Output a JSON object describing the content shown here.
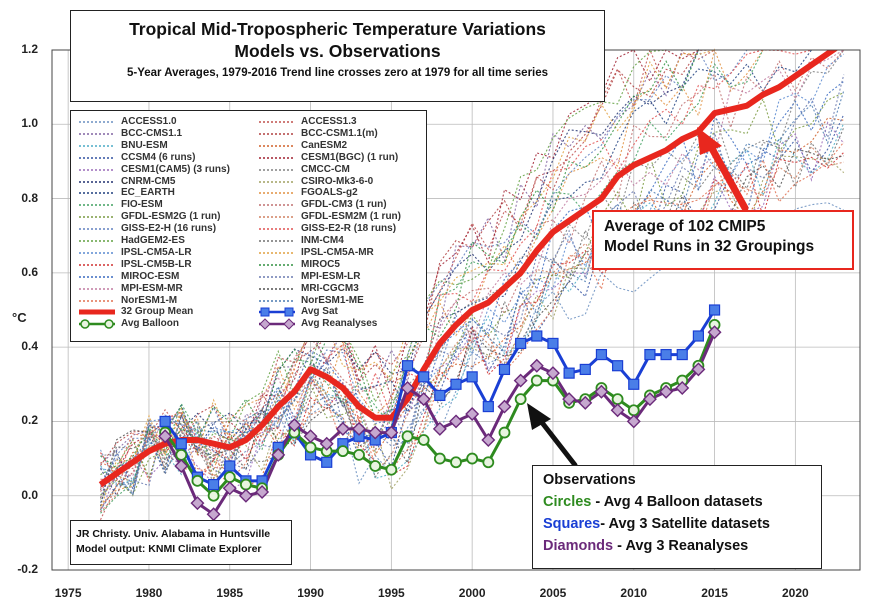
{
  "title": "Tropical Mid-Tropospheric Temperature Variations",
  "subtitle": "Models vs. Observations",
  "subtitle2": "5-Year Averages, 1979-2016 Trend line crosses zero at 1979 for all time series",
  "y_unit": "°C",
  "credit": [
    "JR Christy. Univ. Alabama in Huntsville",
    "Model output: KNMI Climate Explorer"
  ],
  "annotation": [
    "Average of 102 CMIP5",
    "Model Runs in 32 Groupings"
  ],
  "observations": {
    "heading": "Observations",
    "lines": [
      {
        "bold": "Circles",
        "rest": " - Avg 4 Balloon datasets",
        "color": "#2e8b1f"
      },
      {
        "bold": "Squares",
        "rest": "- Avg 3 Satellite datasets",
        "color": "#1a3fd4"
      },
      {
        "bold": "Diamonds",
        "rest": " - Avg 3 Reanalyses",
        "color": "#6b2a7a"
      }
    ]
  },
  "legend": [
    {
      "label": "ACCESS1.0",
      "color": "#6a8fc0"
    },
    {
      "label": "ACCESS1.3",
      "color": "#c0504d"
    },
    {
      "label": "BCC-CMS1.1",
      "color": "#8064a2"
    },
    {
      "label": "BCC-CSM1.1(m)",
      "color": "#b04040"
    },
    {
      "label": "BNU-ESM",
      "color": "#4bacc6"
    },
    {
      "label": "CanESM2",
      "color": "#d0602a"
    },
    {
      "label": "CCSM4 (6 runs)",
      "color": "#3050a0"
    },
    {
      "label": "CESM1(BGC) (1 run)",
      "color": "#a02030"
    },
    {
      "label": "CESM1(CAM5) (3 runs)",
      "color": "#9a6ab8"
    },
    {
      "label": "CMCC-CM",
      "color": "#808080"
    },
    {
      "label": "CNRM-CM5",
      "color": "#203070"
    },
    {
      "label": "CSIRO-Mk3-6-0",
      "color": "#a0a060"
    },
    {
      "label": "EC_EARTH",
      "color": "#1f3f7f"
    },
    {
      "label": "FGOALS-g2",
      "color": "#e09040"
    },
    {
      "label": "FIO-ESM",
      "color": "#40a060"
    },
    {
      "label": "GFDL-CM3 (1 run)",
      "color": "#c07070"
    },
    {
      "label": "GFDL-ESM2G (1 run)",
      "color": "#7a9a40"
    },
    {
      "label": "GFDL-ESM2M (1 run)",
      "color": "#d08060"
    },
    {
      "label": "GISS-E2-H (16 runs)",
      "color": "#6080c0"
    },
    {
      "label": "GISS-E2-R (18 runs)",
      "color": "#e05050"
    },
    {
      "label": "HadGEM2-ES",
      "color": "#60a040"
    },
    {
      "label": "INM-CM4",
      "color": "#707070"
    },
    {
      "label": "IPSL-CM5A-LR",
      "color": "#5a8ad0"
    },
    {
      "label": "IPSL-CM5A-MR",
      "color": "#e0a040"
    },
    {
      "label": "IPSL-CM5B-LR",
      "color": "#d03030"
    },
    {
      "label": "MIROC5",
      "color": "#309040"
    },
    {
      "label": "MIROC-ESM",
      "color": "#3a6ac0"
    },
    {
      "label": "MPI-ESM-LR",
      "color": "#6a7ab0"
    },
    {
      "label": "MPI-ESM-MR",
      "color": "#c07aa0"
    },
    {
      "label": "MRI-CGCM3",
      "color": "#505050"
    },
    {
      "label": "NorESM1-M",
      "color": "#e07050"
    },
    {
      "label": "NorESM1-ME",
      "color": "#4a7ab0"
    },
    {
      "label": "32 Group Mean",
      "color": "#e8271e"
    },
    {
      "label": "Avg Sat",
      "color": "#1a3fd4"
    },
    {
      "label": "Avg Balloon",
      "color": "#2e8b1f"
    },
    {
      "label": "Avg Reanalyses",
      "color": "#6b2a7a"
    }
  ],
  "chart_data": {
    "type": "line",
    "title": "Tropical Mid-Tropospheric Temperature Variations",
    "ylabel": "°C",
    "xlim": [
      1974,
      2024
    ],
    "ylim": [
      -0.2,
      1.2
    ],
    "x_ticks": [
      1975,
      1980,
      1985,
      1990,
      1995,
      2000,
      2005,
      2010,
      2015,
      2020
    ],
    "y_ticks": [
      -0.2,
      0.0,
      0.2,
      0.4,
      0.6,
      0.8,
      1.0,
      1.2
    ],
    "grid": true,
    "series": [
      {
        "name": "32 Group Mean",
        "color": "#e8271e",
        "x": [
          1977,
          1978,
          1979,
          1980,
          1981,
          1982,
          1983,
          1984,
          1985,
          1986,
          1987,
          1988,
          1989,
          1990,
          1991,
          1992,
          1993,
          1994,
          1995,
          1996,
          1997,
          1998,
          1999,
          2000,
          2001,
          2002,
          2003,
          2004,
          2005,
          2006,
          2007,
          2008,
          2009,
          2010,
          2011,
          2012,
          2013,
          2014,
          2015,
          2016,
          2017,
          2018,
          2019,
          2020,
          2021,
          2022,
          2023
        ],
        "values": [
          0.03,
          0.06,
          0.09,
          0.12,
          0.14,
          0.15,
          0.15,
          0.14,
          0.13,
          0.15,
          0.19,
          0.24,
          0.28,
          0.34,
          0.32,
          0.29,
          0.24,
          0.21,
          0.21,
          0.26,
          0.34,
          0.41,
          0.46,
          0.5,
          0.52,
          0.56,
          0.6,
          0.66,
          0.71,
          0.74,
          0.77,
          0.8,
          0.86,
          0.89,
          0.91,
          0.93,
          0.96,
          0.98,
          1.03,
          1.04,
          1.05,
          1.08,
          1.1,
          1.13,
          1.16,
          1.19,
          1.22
        ]
      },
      {
        "name": "Avg Sat",
        "color": "#1a3fd4",
        "x": [
          1981,
          1982,
          1983,
          1984,
          1985,
          1986,
          1987,
          1988,
          1989,
          1990,
          1991,
          1992,
          1993,
          1994,
          1995,
          1996,
          1997,
          1998,
          1999,
          2000,
          2001,
          2002,
          2003,
          2004,
          2005,
          2006,
          2007,
          2008,
          2009,
          2010,
          2011,
          2012,
          2013,
          2014,
          2015
        ],
        "values": [
          0.2,
          0.14,
          0.05,
          0.03,
          0.08,
          0.04,
          0.04,
          0.13,
          0.17,
          0.11,
          0.09,
          0.14,
          0.16,
          0.15,
          0.17,
          0.35,
          0.32,
          0.27,
          0.3,
          0.32,
          0.24,
          0.34,
          0.41,
          0.43,
          0.41,
          0.33,
          0.34,
          0.38,
          0.35,
          0.3,
          0.38,
          0.38,
          0.38,
          0.43,
          0.5
        ]
      },
      {
        "name": "Avg Balloon",
        "color": "#2e8b1f",
        "x": [
          1981,
          1982,
          1983,
          1984,
          1985,
          1986,
          1987,
          1988,
          1989,
          1990,
          1991,
          1992,
          1993,
          1994,
          1995,
          1996,
          1997,
          1998,
          1999,
          2000,
          2001,
          2002,
          2003,
          2004,
          2005,
          2006,
          2007,
          2008,
          2009,
          2010,
          2011,
          2012,
          2013,
          2014,
          2015
        ],
        "values": [
          0.17,
          0.11,
          0.04,
          0.0,
          0.05,
          0.03,
          0.02,
          0.11,
          0.17,
          0.13,
          0.12,
          0.12,
          0.11,
          0.08,
          0.07,
          0.16,
          0.15,
          0.1,
          0.09,
          0.1,
          0.09,
          0.17,
          0.26,
          0.31,
          0.31,
          0.25,
          0.26,
          0.29,
          0.26,
          0.23,
          0.27,
          0.29,
          0.31,
          0.35,
          0.46
        ]
      },
      {
        "name": "Avg Reanalyses",
        "color": "#6b2a7a",
        "x": [
          1981,
          1982,
          1983,
          1984,
          1985,
          1986,
          1987,
          1988,
          1989,
          1990,
          1991,
          1992,
          1993,
          1994,
          1995,
          1996,
          1997,
          1998,
          1999,
          2000,
          2001,
          2002,
          2003,
          2004,
          2005,
          2006,
          2007,
          2008,
          2009,
          2010,
          2011,
          2012,
          2013,
          2014,
          2015
        ],
        "values": [
          0.16,
          0.08,
          -0.02,
          -0.05,
          0.02,
          0.0,
          0.01,
          0.11,
          0.19,
          0.16,
          0.14,
          0.18,
          0.18,
          0.17,
          0.17,
          0.29,
          0.26,
          0.18,
          0.2,
          0.22,
          0.15,
          0.24,
          0.31,
          0.35,
          0.33,
          0.26,
          0.25,
          0.28,
          0.23,
          0.2,
          0.26,
          0.28,
          0.29,
          0.34,
          0.44
        ]
      }
    ]
  }
}
